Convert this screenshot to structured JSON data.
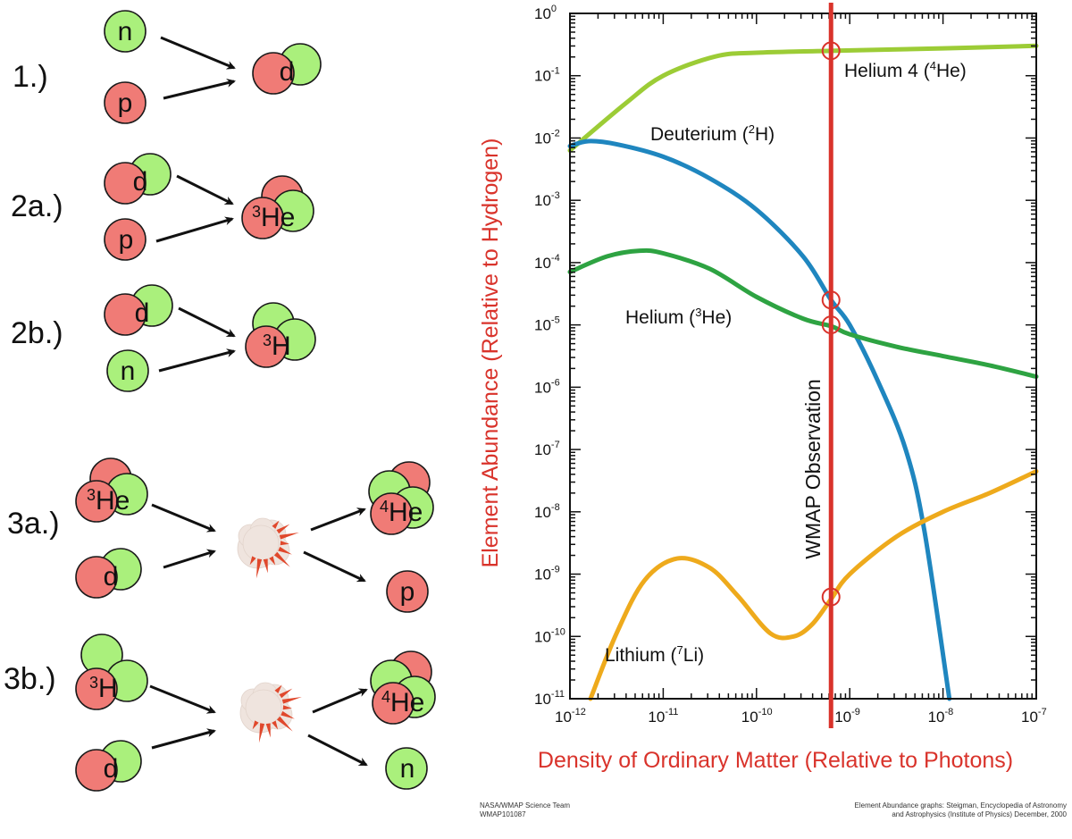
{
  "diagram": {
    "reactions": [
      {
        "label": "1.)"
      },
      {
        "label": "2a.)"
      },
      {
        "label": "2b.)"
      },
      {
        "label": "3a.)"
      },
      {
        "label": "3b.)"
      }
    ],
    "particles": {
      "neutron": "n",
      "proton": "p",
      "deuteron": "d",
      "he3": {
        "mass": "3",
        "symbol": "He"
      },
      "h3": {
        "mass": "3",
        "symbol": "H"
      },
      "he4": {
        "mass": "4",
        "symbol": "He"
      }
    },
    "colors": {
      "proton": "#f07b76",
      "neutron": "#aaf07c",
      "arrow": "#111111",
      "explosion_cloud": "#efe4de",
      "explosion_spark": "#e0482c"
    }
  },
  "chart_data": {
    "type": "line",
    "xscale": "log",
    "yscale": "log",
    "xlim": [
      1e-12,
      1e-07
    ],
    "ylim": [
      1e-11,
      1
    ],
    "xlabel": "Density of Ordinary Matter (Relative to Photons)",
    "ylabel": "Element Abundance (Relative to Hydrogen)",
    "xticks": [
      {
        "base": "10",
        "exp": "-12"
      },
      {
        "base": "10",
        "exp": "-11"
      },
      {
        "base": "10",
        "exp": "-10"
      },
      {
        "base": "10",
        "exp": "-9"
      },
      {
        "base": "10",
        "exp": "-8"
      },
      {
        "base": "10",
        "exp": "-7"
      }
    ],
    "yticks": [
      {
        "base": "10",
        "exp": "0"
      },
      {
        "base": "10",
        "exp": "-1"
      },
      {
        "base": "10",
        "exp": "-2"
      },
      {
        "base": "10",
        "exp": "-3"
      },
      {
        "base": "10",
        "exp": "-4"
      },
      {
        "base": "10",
        "exp": "-5"
      },
      {
        "base": "10",
        "exp": "-6"
      },
      {
        "base": "10",
        "exp": "-7"
      },
      {
        "base": "10",
        "exp": "-8"
      },
      {
        "base": "10",
        "exp": "-9"
      },
      {
        "base": "10",
        "exp": "-10"
      },
      {
        "base": "10",
        "exp": "-11"
      }
    ],
    "grid": false,
    "series": [
      {
        "name": "Helium 4 (",
        "sup": "4",
        "name_end": "He)",
        "color": "#9ccc36",
        "x": [
          1e-12,
          3.98e-12,
          1e-11,
          3.63e-11,
          1e-10,
          6.31e-10,
          1e-08,
          1e-07
        ],
        "y": [
          0.00631,
          0.0363,
          0.1,
          0.204,
          0.234,
          0.251,
          0.275,
          0.302
        ]
      },
      {
        "name": "Deuterium (",
        "sup": "2",
        "name_end": "H)",
        "color": "#1f86bf",
        "x": [
          1e-12,
          1.58e-12,
          3.16e-12,
          1e-11,
          3.16e-11,
          1e-10,
          3.16e-10,
          6.31e-10,
          1e-09,
          2e-09,
          3.98e-09,
          6.31e-09,
          1.17e-08
        ],
        "y": [
          0.00741,
          0.00891,
          0.00794,
          0.00501,
          0.00224,
          0.000708,
          0.000126,
          2.51e-05,
          1e-05,
          1.26e-06,
          1e-07,
          5.01e-09,
          1e-11
        ]
      },
      {
        "name": "Helium (",
        "sup": "3",
        "name_end": "He)",
        "color": "#2ea342",
        "x": [
          1e-12,
          2.51e-12,
          5.62e-12,
          1e-11,
          3.16e-11,
          1e-10,
          3.16e-10,
          6.31e-10,
          1e-09,
          3.16e-09,
          1e-08,
          3.16e-08,
          1e-07
        ],
        "y": [
          7.08e-05,
          0.000126,
          0.000155,
          0.000141,
          7.94e-05,
          2.82e-05,
          1.26e-05,
          9.55e-06,
          7.08e-06,
          4.47e-06,
          3.16e-06,
          2.24e-06,
          1.48e-06
        ]
      },
      {
        "name": "Lithium (",
        "sup": "7",
        "name_end": "Li)",
        "color": "#eeaa1c",
        "x": [
          1.66e-12,
          3.16e-12,
          6.31e-12,
          1.41e-11,
          3.16e-11,
          6.31e-11,
          1.41e-10,
          2.51e-10,
          3.98e-10,
          6.31e-10,
          1e-09,
          3.16e-09,
          1e-08,
          3.16e-08,
          1e-07
        ],
        "y": [
          1e-11,
          1.12e-10,
          7.94e-10,
          1.78e-09,
          1.26e-09,
          4.47e-10,
          1.12e-10,
          1e-10,
          1.58e-10,
          3.98e-10,
          1e-09,
          3.98e-09,
          1e-08,
          2e-08,
          4.47e-08
        ]
      }
    ],
    "observation": {
      "label": "WMAP Observation",
      "x": 6.3e-10,
      "color": "#d9332b",
      "markers": [
        0.251,
        2.51e-05,
        1e-05,
        4.3e-10
      ]
    },
    "credits": {
      "left_line1": "NASA/WMAP Science Team",
      "left_line2": "WMAP101087",
      "right_line1": "Element Abundance graphs: Steigman, Encyclopedia of Astronomy",
      "right_line2": "and Astrophysics (Institute of Physics) December, 2000"
    }
  }
}
